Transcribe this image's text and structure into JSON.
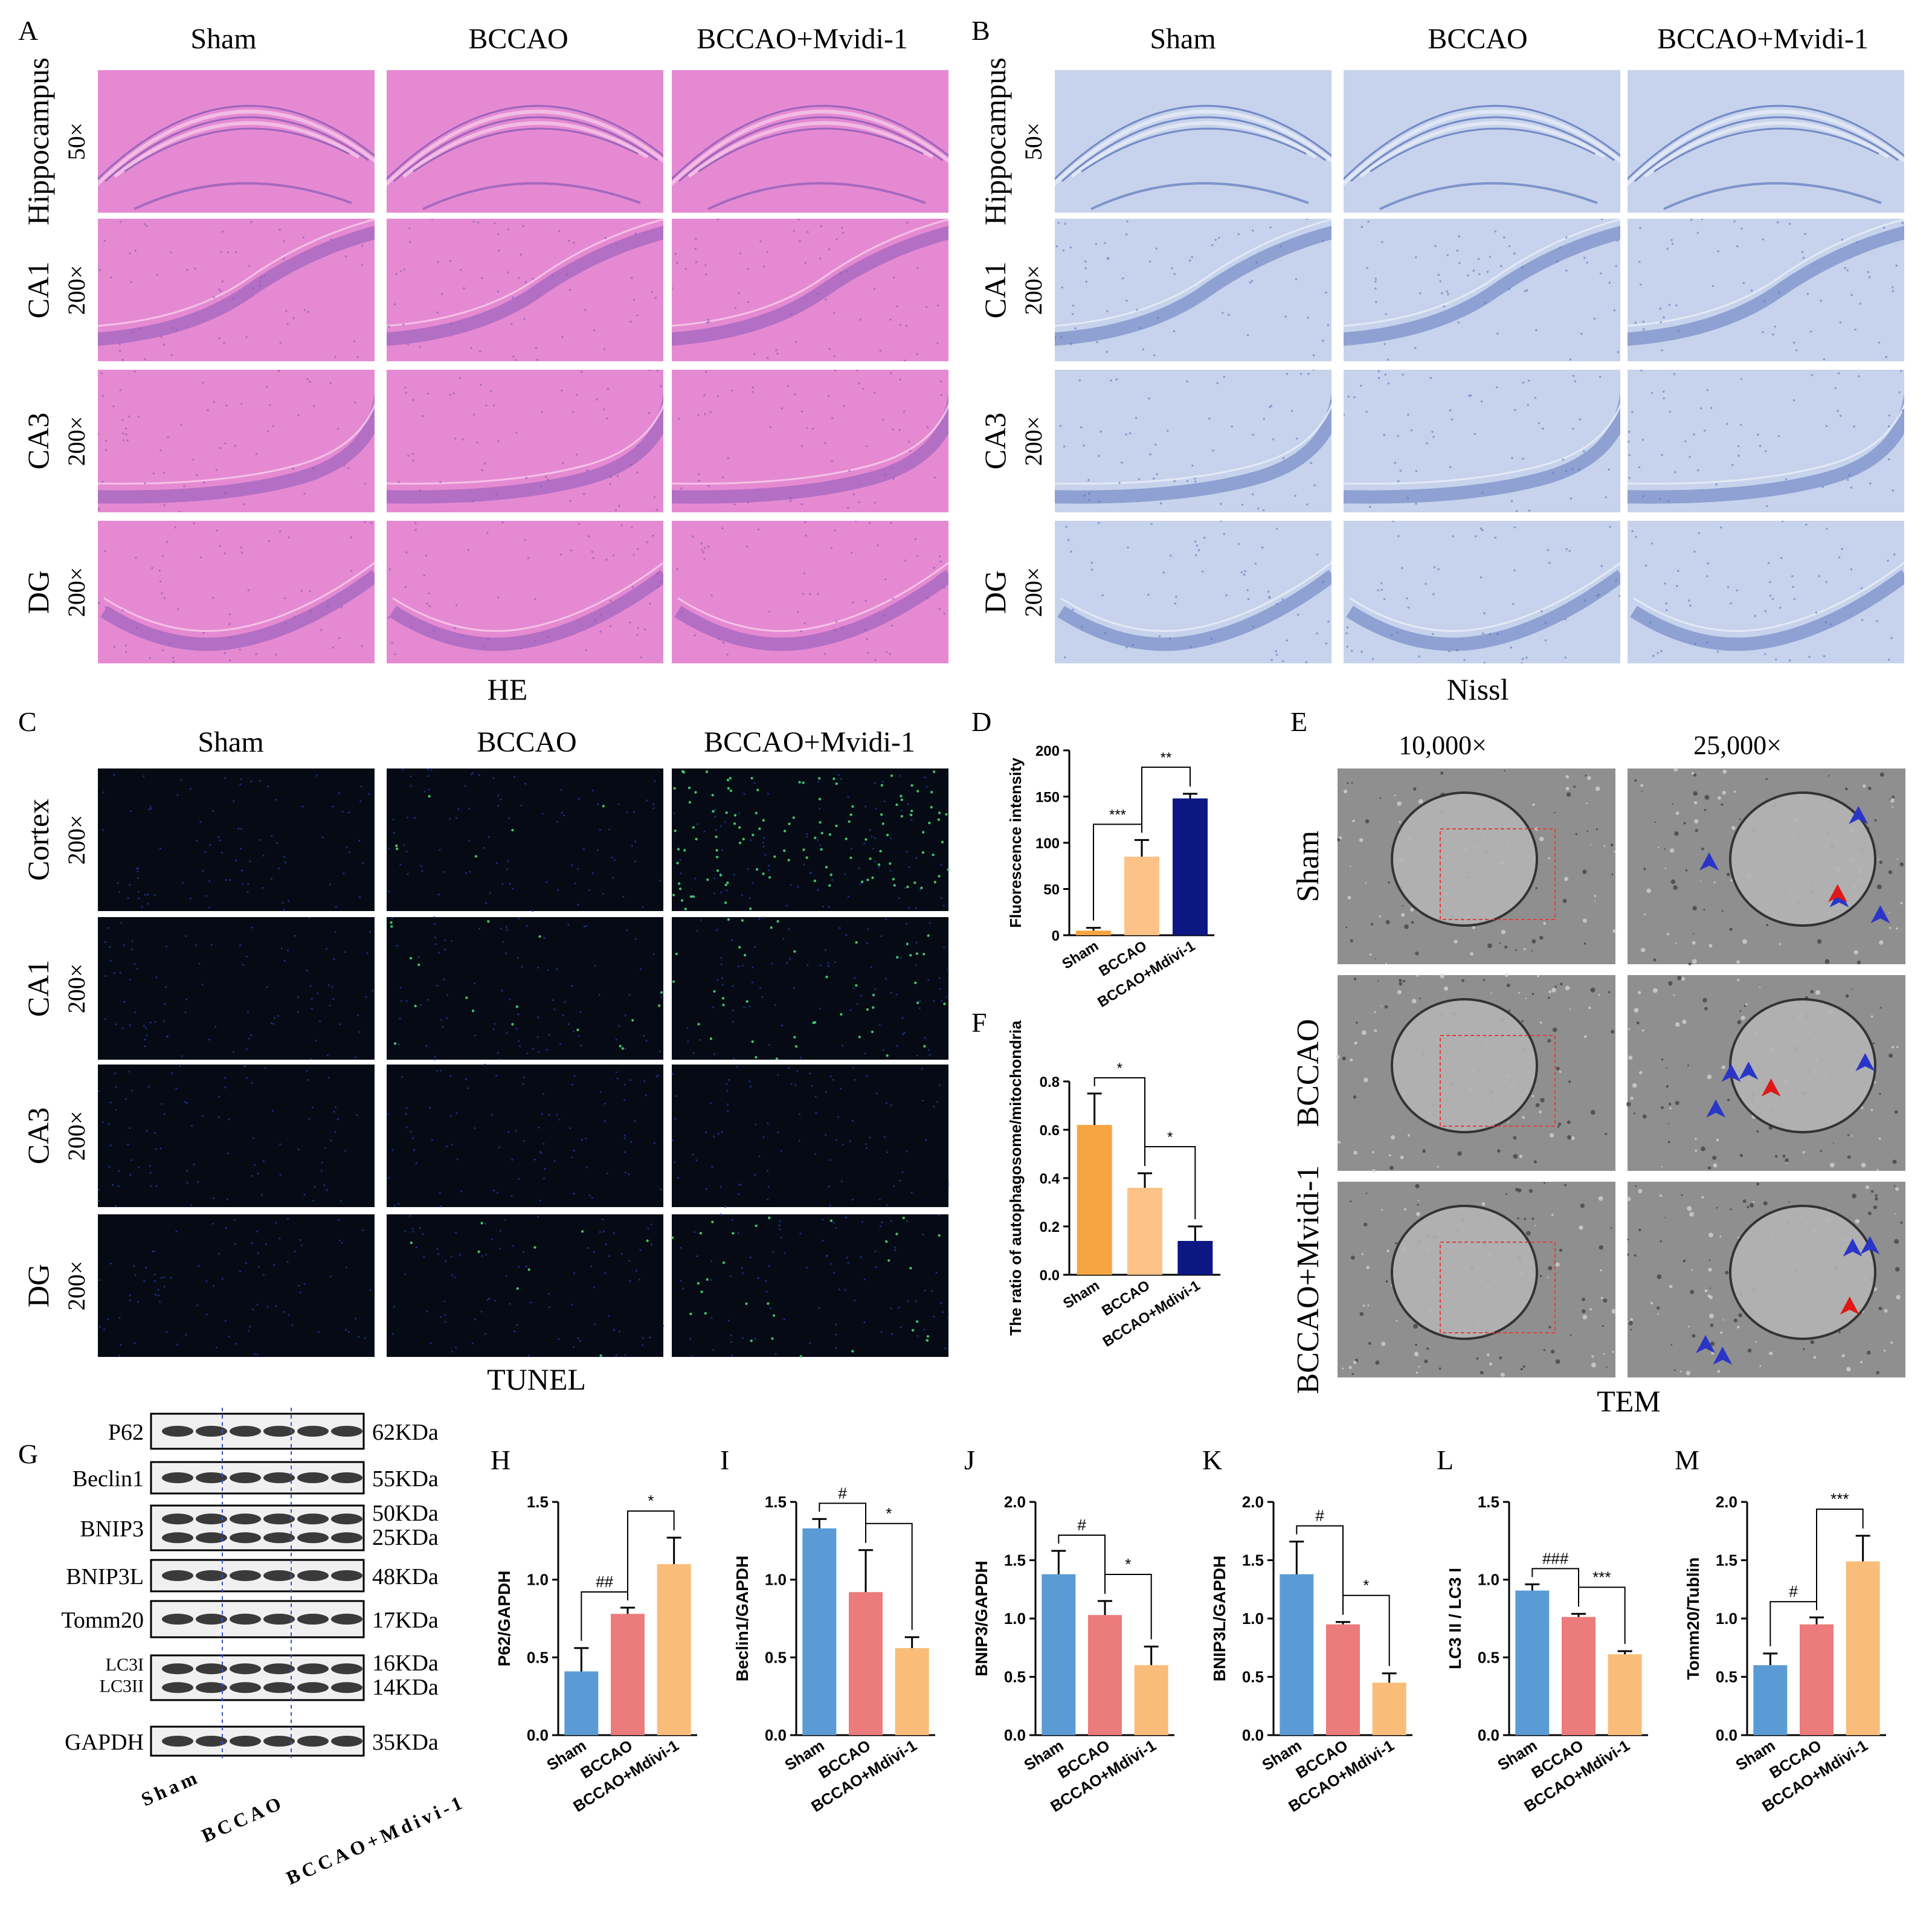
{
  "panel_letters": [
    "A",
    "B",
    "C",
    "D",
    "E",
    "F",
    "G",
    "H",
    "I",
    "J",
    "K",
    "L",
    "M"
  ],
  "groups": [
    "Sham",
    "BCCAO",
    "BCCAO+Mvidi-1"
  ],
  "he": {
    "caption": "HE",
    "rows": [
      {
        "region": "Hippocampus",
        "mag": "50×"
      },
      {
        "region": "CA1",
        "mag": "200×"
      },
      {
        "region": "CA3",
        "mag": "200×"
      },
      {
        "region": "DG",
        "mag": "200×"
      }
    ],
    "colors": {
      "bg": "#e58ad2",
      "dense": "#8a5ab8",
      "light": "#f5c8ea"
    }
  },
  "nissl": {
    "caption": "Nissl",
    "colors": {
      "bg": "#c7d3ec",
      "dense": "#5e78be",
      "light": "#e6ecf6"
    }
  },
  "tunel": {
    "caption": "TUNEL",
    "rows": [
      {
        "region": "Cortex",
        "mag": "200×"
      },
      {
        "region": "CA1",
        "mag": "200×"
      },
      {
        "region": "CA3",
        "mag": "200×"
      },
      {
        "region": "DG",
        "mag": "200×"
      }
    ]
  },
  "tem": {
    "caption": "TEM",
    "magnifications": [
      "10,000×",
      "25,000×"
    ],
    "rows": [
      "Sham",
      "BCCAO",
      "BCCAO+Mvidi-1"
    ]
  },
  "western": {
    "bands": [
      {
        "name": "P62",
        "kda": "62KDa"
      },
      {
        "name": "Beclin1",
        "kda": "55KDa"
      },
      {
        "name": "BNIP3",
        "kda": "50KDa",
        "kda2": "25KDa"
      },
      {
        "name": "BNIP3L",
        "kda": "48KDa"
      },
      {
        "name": "Tomm20",
        "kda": "17KDa"
      },
      {
        "name": "LC3I",
        "name2": "LC3II",
        "kda": "16KDa",
        "kda2": "14KDa"
      },
      {
        "name": "GAPDH",
        "kda": "35KDa"
      }
    ],
    "lane_labels": [
      "Sham",
      "BCCAO",
      "BCCAO+Mdivi-1"
    ]
  },
  "chart_data": [
    {
      "id": "D",
      "type": "bar",
      "categories": [
        "Sham",
        "BCCAO",
        "BCCAO+Mdivi-1"
      ],
      "values": [
        5,
        85,
        148
      ],
      "errors": [
        3,
        18,
        5
      ],
      "colors": [
        "#f7a541",
        "#fdc287",
        "#0c1784"
      ],
      "ylabel": "Fluorescence intensity",
      "ylim": [
        0,
        200
      ],
      "yticks": [
        "0",
        "50",
        "100",
        "150",
        "200"
      ],
      "sig": [
        {
          "from": 0,
          "to": 1,
          "text": "***"
        },
        {
          "from": 1,
          "to": 2,
          "text": "**"
        }
      ]
    },
    {
      "id": "F",
      "type": "bar",
      "categories": [
        "Sham",
        "BCCAO",
        "BCCAO+Mdivi-1"
      ],
      "values": [
        0.62,
        0.36,
        0.14
      ],
      "errors": [
        0.13,
        0.06,
        0.06
      ],
      "colors": [
        "#f7a541",
        "#fdc287",
        "#0c1784"
      ],
      "ylabel": "The ratio of autophagosome/mitochondria",
      "ylim": [
        0,
        0.8
      ],
      "yticks": [
        "0.0",
        "0.2",
        "0.4",
        "0.6",
        "0.8"
      ],
      "sig": [
        {
          "from": 0,
          "to": 1,
          "text": "*"
        },
        {
          "from": 1,
          "to": 2,
          "text": "*"
        }
      ]
    },
    {
      "id": "H",
      "type": "bar",
      "categories": [
        "Sham",
        "BCCAO",
        "BCCAO+Mdivi-1"
      ],
      "values": [
        0.41,
        0.78,
        1.1
      ],
      "errors": [
        0.15,
        0.04,
        0.17
      ],
      "colors": [
        "#5b9bd5",
        "#ec7b7b",
        "#f9bd79"
      ],
      "ylabel": "P62/GAPDH",
      "ylim": [
        0,
        1.5
      ],
      "yticks": [
        "0.0",
        "0.5",
        "1.0",
        "1.5"
      ],
      "sig": [
        {
          "from": 0,
          "to": 1,
          "text": "##"
        },
        {
          "from": 1,
          "to": 2,
          "text": "*"
        }
      ]
    },
    {
      "id": "I",
      "type": "bar",
      "categories": [
        "Sham",
        "BCCAO",
        "BCCAO+Mdivi-1"
      ],
      "values": [
        1.33,
        0.92,
        0.56
      ],
      "errors": [
        0.06,
        0.27,
        0.07
      ],
      "colors": [
        "#5b9bd5",
        "#ec7b7b",
        "#f9bd79"
      ],
      "ylabel": "Beclin1/GAPDH",
      "ylim": [
        0,
        1.5
      ],
      "yticks": [
        "0.0",
        "0.5",
        "1.0",
        "1.5"
      ],
      "sig": [
        {
          "from": 0,
          "to": 1,
          "text": "#"
        },
        {
          "from": 1,
          "to": 2,
          "text": "*"
        }
      ]
    },
    {
      "id": "J",
      "type": "bar",
      "categories": [
        "Sham",
        "BCCAO",
        "BCCAO+Mdivi-1"
      ],
      "values": [
        1.38,
        1.03,
        0.6
      ],
      "errors": [
        0.2,
        0.12,
        0.16
      ],
      "colors": [
        "#5b9bd5",
        "#ec7b7b",
        "#f9bd79"
      ],
      "ylabel": "BNIP3/GAPDH",
      "ylim": [
        0,
        2.0
      ],
      "yticks": [
        "0.0",
        "0.5",
        "1.0",
        "1.5",
        "2.0"
      ],
      "sig": [
        {
          "from": 0,
          "to": 1,
          "text": "#"
        },
        {
          "from": 1,
          "to": 2,
          "text": "*"
        }
      ]
    },
    {
      "id": "K",
      "type": "bar",
      "categories": [
        "Sham",
        "BCCAO",
        "BCCAO+Mdivi-1"
      ],
      "values": [
        1.38,
        0.95,
        0.45
      ],
      "errors": [
        0.28,
        0.02,
        0.08
      ],
      "colors": [
        "#5b9bd5",
        "#ec7b7b",
        "#f9bd79"
      ],
      "ylabel": "BNIP3L/GAPDH",
      "ylim": [
        0,
        2.0
      ],
      "yticks": [
        "0.0",
        "0.5",
        "1.0",
        "1.5",
        "2.0"
      ],
      "sig": [
        {
          "from": 0,
          "to": 1,
          "text": "#"
        },
        {
          "from": 1,
          "to": 2,
          "text": "*"
        }
      ]
    },
    {
      "id": "L",
      "type": "bar",
      "categories": [
        "Sham",
        "BCCAO",
        "BCCAO+Mdivi-1"
      ],
      "values": [
        0.93,
        0.76,
        0.52
      ],
      "errors": [
        0.04,
        0.02,
        0.02
      ],
      "colors": [
        "#5b9bd5",
        "#ec7b7b",
        "#f9bd79"
      ],
      "ylabel": "LC3 II / LC3 I",
      "ylim": [
        0,
        1.5
      ],
      "yticks": [
        "0.0",
        "0.5",
        "1.0",
        "1.5"
      ],
      "sig": [
        {
          "from": 0,
          "to": 1,
          "text": "###"
        },
        {
          "from": 1,
          "to": 2,
          "text": "***"
        }
      ]
    },
    {
      "id": "M",
      "type": "bar",
      "categories": [
        "Sham",
        "BCCAO",
        "BCCAO+Mdivi-1"
      ],
      "values": [
        0.6,
        0.95,
        1.49
      ],
      "errors": [
        0.1,
        0.06,
        0.22
      ],
      "colors": [
        "#5b9bd5",
        "#ec7b7b",
        "#f9bd79"
      ],
      "ylabel": "Tomm20/Tublin",
      "ylim": [
        0,
        2.0
      ],
      "yticks": [
        "0.0",
        "0.5",
        "1.0",
        "1.5",
        "2.0"
      ],
      "sig": [
        {
          "from": 0,
          "to": 1,
          "text": "#"
        },
        {
          "from": 1,
          "to": 2,
          "text": "***"
        }
      ]
    }
  ]
}
